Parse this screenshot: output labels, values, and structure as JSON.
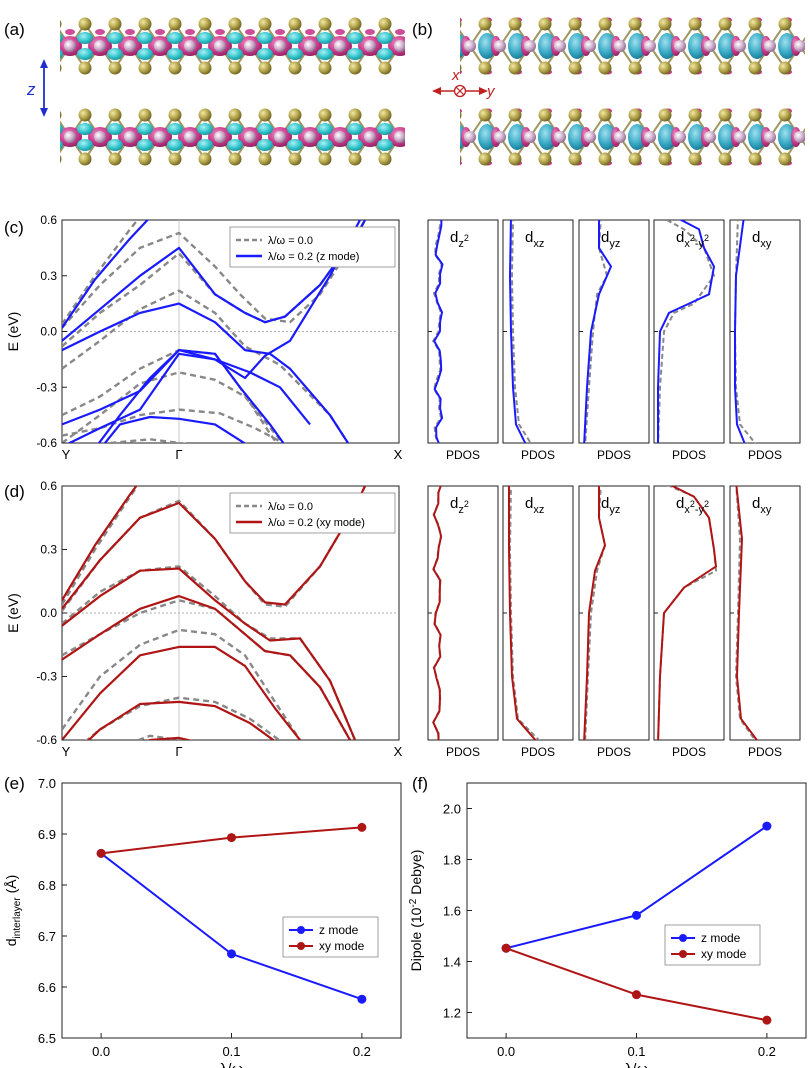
{
  "panels": {
    "a": "(a)",
    "b": "(b)",
    "c": "(c)",
    "d": "(d)",
    "e": "(e)",
    "f": "(f)"
  },
  "structure": {
    "axis_z": "z",
    "axis_x": "x",
    "axis_y": "y"
  },
  "bands": {
    "ylabel": "E (eV)",
    "yticks": [
      "0.6",
      "0.3",
      "0.0",
      "-0.3",
      "-0.6"
    ],
    "kpoints": [
      "Y",
      "Γ",
      "X"
    ],
    "legend_c": [
      "λ/ω = 0.0",
      "λ/ω = 0.2 (z mode)"
    ],
    "legend_d": [
      "λ/ω = 0.0",
      "λ/ω = 0.2 (xy mode)"
    ]
  },
  "pdos": {
    "orbitals": [
      {
        "base": "d",
        "sub": "z",
        "sup": "2",
        "tail": ""
      },
      {
        "base": "d",
        "sub": "xz",
        "sup": "",
        "tail": ""
      },
      {
        "base": "d",
        "sub": "yz",
        "sup": "",
        "tail": ""
      },
      {
        "base": "d",
        "sub": "x",
        "sup": "2",
        "tail": "-y",
        "sup2": "2"
      },
      {
        "base": "d",
        "sub": "xy",
        "sup": "",
        "tail": ""
      }
    ],
    "xlabel": "PDOS"
  },
  "colors": {
    "z_mode": "#1a1aff",
    "xy_mode": "#b01515",
    "reference": "#888888",
    "cyan_lobe": "#35c5cc",
    "magenta_lobe": "#c83b8b",
    "s_atom": "#a89a40",
    "metal_atom": "#c9a3c6"
  },
  "chart_data": [
    {
      "type": "line",
      "title": "(e)",
      "xlabel": "λ/ω",
      "ylabel": "d_interlayer (Å)",
      "ylabel_main": "d",
      "ylabel_sub": "interlayer",
      "ylabel_tail": " (Å)",
      "x": [
        0.0,
        0.1,
        0.2
      ],
      "xticks": [
        "0.0",
        "0.1",
        "0.2"
      ],
      "yticks": [
        "6.5",
        "6.6",
        "6.7",
        "6.8",
        "6.9",
        "7.0"
      ],
      "xlim": [
        -0.03,
        0.23
      ],
      "ylim": [
        6.5,
        7.0
      ],
      "series": [
        {
          "name": "z mode",
          "values": [
            6.862,
            6.665,
            6.576
          ],
          "color": "#1a1aff"
        },
        {
          "name": "xy mode",
          "values": [
            6.862,
            6.893,
            6.913
          ],
          "color": "#b01515"
        }
      ]
    },
    {
      "type": "line",
      "title": "(f)",
      "xlabel": "λ/ω",
      "ylabel": "Dipole (10^-2 Debye)",
      "ylabel_main": "Dipole (10",
      "ylabel_sup": "-2",
      "ylabel_tail": " Debye)",
      "x": [
        0.0,
        0.1,
        0.2
      ],
      "xticks": [
        "0.0",
        "0.1",
        "0.2"
      ],
      "yticks": [
        "1.2",
        "1.4",
        "1.6",
        "1.8",
        "2.0"
      ],
      "xlim": [
        -0.03,
        0.23
      ],
      "ylim": [
        1.1,
        2.1
      ],
      "series": [
        {
          "name": "z mode",
          "values": [
            1.452,
            1.581,
            1.931
          ],
          "color": "#1a1aff"
        },
        {
          "name": "xy mode",
          "values": [
            1.452,
            1.27,
            1.17
          ],
          "color": "#b01515"
        }
      ]
    }
  ]
}
